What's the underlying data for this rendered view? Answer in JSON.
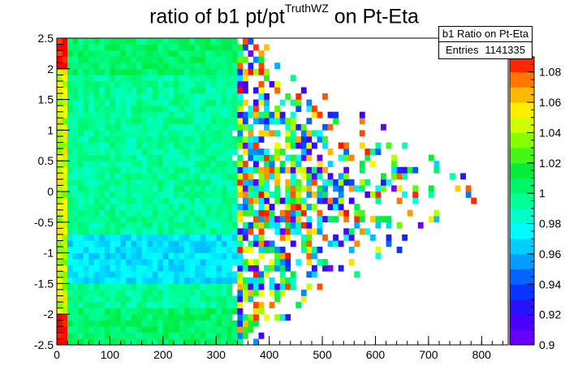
{
  "title": {
    "prefix": "ratio of b1 pt/pt",
    "superscript": "TruthWZ",
    "suffix": " on Pt-Eta"
  },
  "stats": {
    "name": "b1 Ratio on Pt-Eta",
    "entries_label": "Entries",
    "entries_value": "1141335"
  },
  "chart_data": {
    "type": "heatmap",
    "title": "ratio of b1 pt/pt^TruthWZ on Pt-Eta",
    "xlabel": "",
    "ylabel": "",
    "xlim": [
      0,
      850
    ],
    "ylim": [
      -2.5,
      2.5
    ],
    "zlim": [
      0.9,
      1.09
    ],
    "x_ticks": [
      0,
      100,
      200,
      300,
      400,
      500,
      600,
      700,
      800
    ],
    "y_ticks": [
      -2.5,
      -2,
      -1.5,
      -1,
      -0.5,
      0,
      0.5,
      1,
      1.5,
      2,
      2.5
    ],
    "z_ticks": [
      0.9,
      0.92,
      0.94,
      0.96,
      0.98,
      1,
      1.02,
      1.04,
      1.06,
      1.08
    ],
    "bins": {
      "x_bins": 85,
      "y_bins": 50
    },
    "palette": "rainbow",
    "grid": false,
    "legend": "top-right",
    "description_of_values": [
      {
        "region": "pt 0-20, |eta| 2.0-2.5",
        "value_approx": 1.08
      },
      {
        "region": "pt 0-20, other eta",
        "value_approx": 1.05
      },
      {
        "region": "pt 20-340, eta -0.5 to 0.5",
        "value_approx": 0.99
      },
      {
        "region": "pt 20-340, eta -1.5 to -0.7",
        "value_approx": 0.97
      },
      {
        "region": "pt 20-340, eta 0.7 to 1.5",
        "value_approx": 0.99
      },
      {
        "region": "pt 340-850, sparse",
        "value_approx": 1.0
      }
    ]
  },
  "colors": {
    "frame": "#000000",
    "background": "#ffffff"
  }
}
